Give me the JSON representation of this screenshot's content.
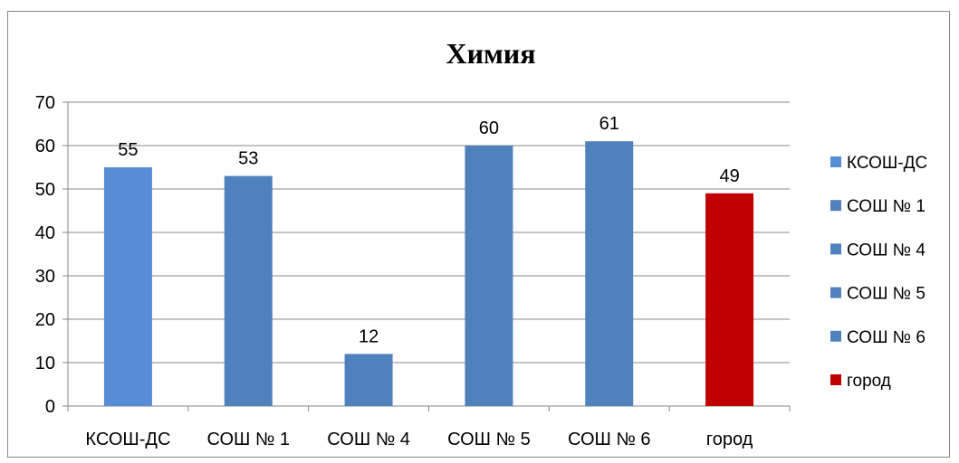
{
  "chart_data": {
    "type": "bar",
    "title": "Химия",
    "categories": [
      "КСОШ-ДС",
      "СОШ № 1",
      "СОШ № 4",
      "СОШ № 5",
      "СОШ № 6",
      "город"
    ],
    "values": [
      55,
      53,
      12,
      60,
      61,
      49
    ],
    "colors": [
      "#558ED5",
      "#4F81BD",
      "#4F81BD",
      "#4F81BD",
      "#4F81BD",
      "#C00000"
    ],
    "ylim": [
      0,
      70
    ],
    "yticks": [
      0,
      10,
      20,
      30,
      40,
      50,
      60,
      70
    ],
    "grid": true,
    "legend_position": "right",
    "legend": [
      {
        "label": "КСОШ-ДС",
        "color": "#558ED5"
      },
      {
        "label": "СОШ № 1",
        "color": "#4F81BD"
      },
      {
        "label": "СОШ № 4",
        "color": "#4F81BD"
      },
      {
        "label": "СОШ № 5",
        "color": "#4F81BD"
      },
      {
        "label": "СОШ № 6",
        "color": "#4F81BD"
      },
      {
        "label": "город",
        "color": "#C00000"
      }
    ]
  }
}
